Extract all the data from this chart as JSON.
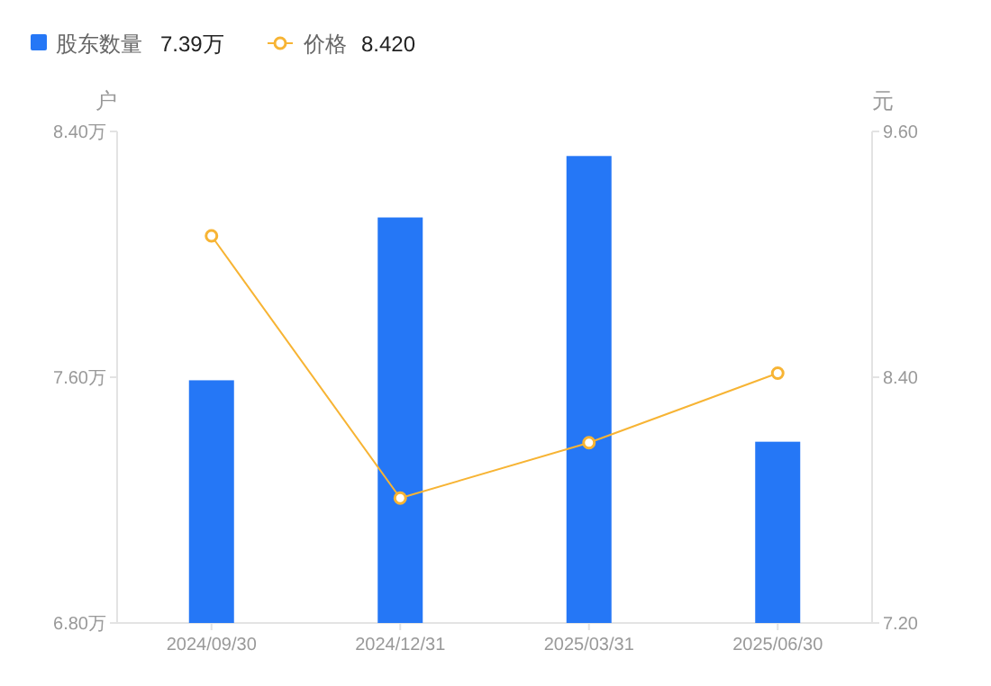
{
  "chart_data": {
    "type": "bar",
    "categories": [
      "2024/09/30",
      "2024/12/31",
      "2025/03/31",
      "2025/06/30"
    ],
    "series": [
      {
        "name": "股东数量",
        "color": "#2577f6",
        "values": [
          7.59,
          8.12,
          8.32,
          7.39
        ]
      },
      {
        "name": "价格",
        "type": "line",
        "axis": "y2",
        "color": "#f7b434",
        "values": [
          9.09,
          7.81,
          8.08,
          8.42
        ]
      }
    ],
    "ylabel": "户",
    "y2label": "元",
    "ylim": [
      6.8,
      8.4
    ],
    "yticks": [
      {
        "value": 6.8,
        "label": "6.80万"
      },
      {
        "value": 7.6,
        "label": "7.60万"
      },
      {
        "value": 8.4,
        "label": "8.40万"
      }
    ],
    "y2lim": [
      7.2,
      9.6
    ],
    "y2ticks": [
      {
        "value": 7.2,
        "label": "7.20"
      },
      {
        "value": 8.4,
        "label": "8.40"
      },
      {
        "value": 9.6,
        "label": "9.60"
      }
    ],
    "annotations": [
      "7.39万",
      "8.420"
    ],
    "legend": "top left",
    "marker": "circle"
  }
}
